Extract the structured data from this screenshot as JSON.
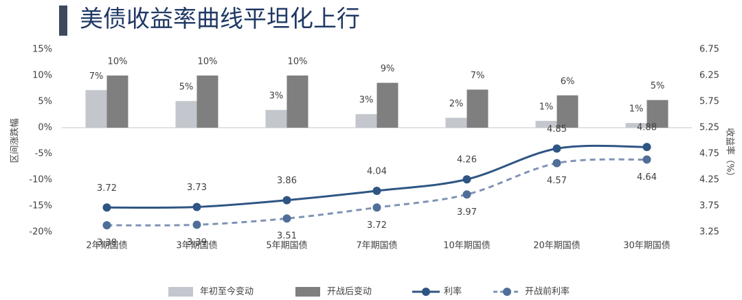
{
  "chart_data": {
    "type": "combo",
    "title": "美债收益率曲线平坦化上行",
    "y_label": "区间涨跌幅",
    "y2_label": "收益率（%）",
    "categories": [
      "2年期国债",
      "3年期国债",
      "5年期国债",
      "7年期国债",
      "10年期国债",
      "20年期国债",
      "30年期国债"
    ],
    "series": [
      {
        "name": "年初至今变动",
        "type": "bar",
        "color": "#c3c6cc",
        "values": [
          7.2,
          5.1,
          3.4,
          2.6,
          1.9,
          1.3,
          0.9
        ],
        "value_labels": [
          "7%",
          "5%",
          "3%",
          "3%",
          "2%",
          "1%",
          "1%"
        ]
      },
      {
        "name": "开战后变动",
        "type": "bar",
        "color": "#7f7f7f",
        "values": [
          10,
          10,
          10,
          8.6,
          7.3,
          6.2,
          5.3
        ],
        "value_labels": [
          "10%",
          "10%",
          "10%",
          "9%",
          "7%",
          "6%",
          "5%"
        ]
      },
      {
        "name": "利率",
        "type": "line",
        "axis": "y2",
        "color": "#2e5583",
        "dashed": false,
        "values": [
          3.72,
          3.73,
          3.86,
          4.04,
          4.26,
          4.85,
          4.88
        ]
      },
      {
        "name": "开战前利率",
        "type": "line",
        "axis": "y2",
        "color": "#7f93b5",
        "dashed": true,
        "values": [
          3.38,
          3.39,
          3.51,
          3.72,
          3.97,
          4.57,
          4.64
        ]
      }
    ],
    "ylim": [
      -20,
      15
    ],
    "yticks": [
      {
        "value": -20,
        "label": "-20%"
      },
      {
        "value": -15,
        "label": "-15%"
      },
      {
        "value": -10,
        "label": "-10%"
      },
      {
        "value": -5,
        "label": "-5%"
      },
      {
        "value": 0,
        "label": "0%"
      },
      {
        "value": 5,
        "label": "5%"
      },
      {
        "value": 10,
        "label": "10%"
      },
      {
        "value": 15,
        "label": "15%"
      }
    ],
    "y2lim": [
      3.25,
      6.75
    ],
    "y2ticks": [
      3.25,
      3.75,
      4.25,
      4.75,
      5.25,
      5.75,
      6.25,
      6.75
    ],
    "legend": "bottom"
  }
}
